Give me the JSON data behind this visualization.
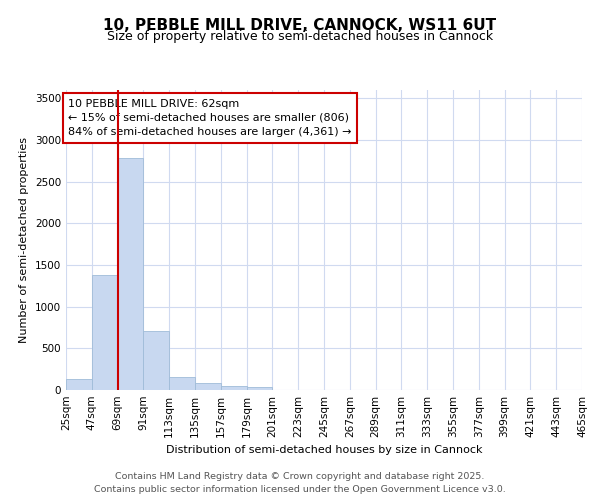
{
  "title": "10, PEBBLE MILL DRIVE, CANNOCK, WS11 6UT",
  "subtitle": "Size of property relative to semi-detached houses in Cannock",
  "xlabel": "Distribution of semi-detached houses by size in Cannock",
  "ylabel": "Number of semi-detached properties",
  "footer_line1": "Contains HM Land Registry data © Crown copyright and database right 2025.",
  "footer_line2": "Contains public sector information licensed under the Open Government Licence v3.0.",
  "bin_edges": [
    25,
    47,
    69,
    91,
    113,
    135,
    157,
    179,
    201,
    223,
    245,
    267,
    289,
    311,
    333,
    355,
    377,
    399,
    421,
    443,
    465
  ],
  "bin_labels": [
    "25sqm",
    "47sqm",
    "69sqm",
    "91sqm",
    "113sqm",
    "135sqm",
    "157sqm",
    "179sqm",
    "201sqm",
    "223sqm",
    "245sqm",
    "267sqm",
    "289sqm",
    "311sqm",
    "333sqm",
    "355sqm",
    "377sqm",
    "399sqm",
    "421sqm",
    "443sqm",
    "465sqm"
  ],
  "bar_values": [
    130,
    1380,
    2790,
    705,
    155,
    85,
    48,
    38,
    0,
    0,
    0,
    0,
    0,
    0,
    0,
    0,
    0,
    0,
    0,
    0
  ],
  "bar_color": "#c8d8f0",
  "bar_edge_color": "#a0bcd8",
  "property_line_x": 69,
  "property_line_color": "#cc0000",
  "annotation_line1": "10 PEBBLE MILL DRIVE: 62sqm",
  "annotation_line2": "← 15% of semi-detached houses are smaller (806)",
  "annotation_line3": "84% of semi-detached houses are larger (4,361) →",
  "annotation_box_color": "#ffffff",
  "annotation_box_edge_color": "#cc0000",
  "ylim": [
    0,
    3600
  ],
  "yticks": [
    0,
    500,
    1000,
    1500,
    2000,
    2500,
    3000,
    3500
  ],
  "bg_color": "#ffffff",
  "plot_bg_color": "#ffffff",
  "grid_color": "#d0daf0",
  "title_fontsize": 11,
  "subtitle_fontsize": 9,
  "axis_label_fontsize": 8,
  "tick_fontsize": 7.5,
  "annotation_fontsize": 8,
  "footer_fontsize": 6.8
}
